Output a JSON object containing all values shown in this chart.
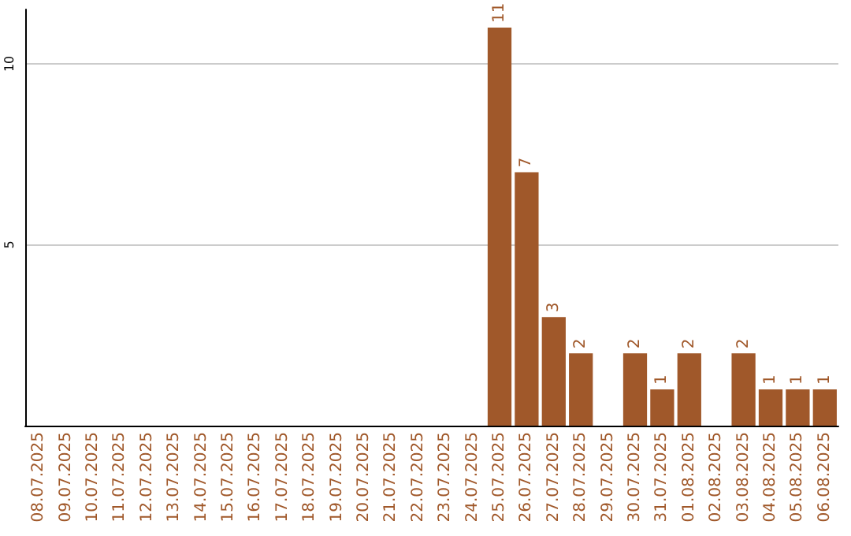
{
  "chart_data": {
    "type": "bar",
    "categories": [
      "08.07.2025",
      "09.07.2025",
      "10.07.2025",
      "11.07.2025",
      "12.07.2025",
      "13.07.2025",
      "14.07.2025",
      "15.07.2025",
      "16.07.2025",
      "17.07.2025",
      "18.07.2025",
      "19.07.2025",
      "20.07.2025",
      "21.07.2025",
      "22.07.2025",
      "23.07.2025",
      "24.07.2025",
      "25.07.2025",
      "26.07.2025",
      "27.07.2025",
      "28.07.2025",
      "29.07.2025",
      "30.07.2025",
      "31.07.2025",
      "01.08.2025",
      "02.08.2025",
      "03.08.2025",
      "04.08.2025",
      "05.08.2025",
      "06.08.2025"
    ],
    "values": [
      0,
      0,
      0,
      0,
      0,
      0,
      0,
      0,
      0,
      0,
      0,
      0,
      0,
      0,
      0,
      0,
      0,
      11,
      7,
      3,
      2,
      0,
      2,
      1,
      2,
      0,
      2,
      1,
      1,
      1
    ],
    "value_labels": [
      null,
      null,
      null,
      null,
      null,
      null,
      null,
      null,
      null,
      null,
      null,
      null,
      null,
      null,
      null,
      null,
      null,
      "11",
      "7",
      "3",
      "2",
      null,
      "2",
      "1",
      "2",
      null,
      "2",
      "1",
      "1",
      "1"
    ],
    "color": "#a0582a",
    "ylim": [
      0,
      11.5
    ],
    "yticks": [
      5,
      10
    ],
    "grid": "y"
  }
}
